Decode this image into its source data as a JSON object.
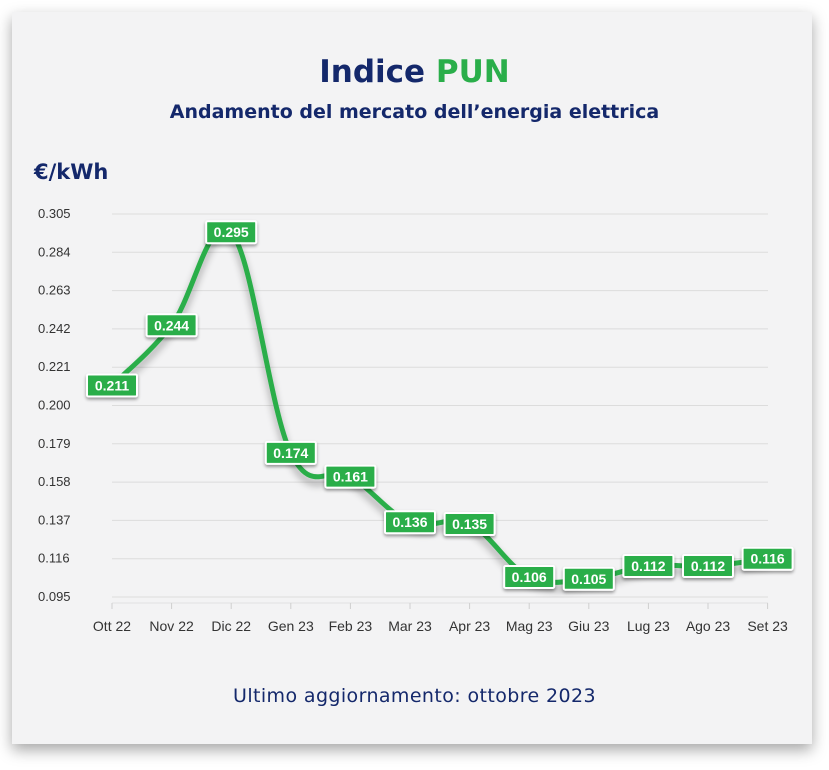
{
  "header": {
    "title_main": "Indice",
    "title_accent": "PUN",
    "subtitle": "Andamento del mercato dell’energia elettrica"
  },
  "footer": {
    "text": "Ultimo aggiornamento: ottobre 2023"
  },
  "colors": {
    "navy": "#14286b",
    "green": "#2aae4a",
    "background": "#f3f3f4"
  },
  "chart_data": {
    "type": "line",
    "title": "Indice PUN",
    "subtitle": "Andamento del mercato dell’energia elettrica",
    "ylabel": "€/kWh",
    "xlabel": "",
    "categories": [
      "Ott 22",
      "Nov 22",
      "Dic 22",
      "Gen 23",
      "Feb 23",
      "Mar 23",
      "Apr 23",
      "Mag 23",
      "Giu 23",
      "Lug 23",
      "Ago 23",
      "Set 23"
    ],
    "series": [
      {
        "values": [
          0.211,
          0.244,
          0.295,
          0.174,
          0.161,
          0.136,
          0.135,
          0.106,
          0.105,
          0.112,
          0.112,
          0.116
        ]
      }
    ],
    "data_labels": [
      "0.211",
      "0.244",
      "0.295",
      "0.174",
      "0.161",
      "0.136",
      "0.135",
      "0.106",
      "0.105",
      "0.112",
      "0.112",
      "0.116"
    ],
    "yticks": [
      0.095,
      0.116,
      0.137,
      0.158,
      0.179,
      0.2,
      0.221,
      0.242,
      0.263,
      0.284,
      0.305
    ],
    "ytick_labels": [
      "0.095",
      "0.116",
      "0.137",
      "0.158",
      "0.179",
      "0.200",
      "0.221",
      "0.242",
      "0.263",
      "0.284",
      "0.305"
    ],
    "ylim": [
      0.095,
      0.305
    ],
    "grid": true,
    "legend": "none",
    "line_color": "#2aae4a"
  }
}
